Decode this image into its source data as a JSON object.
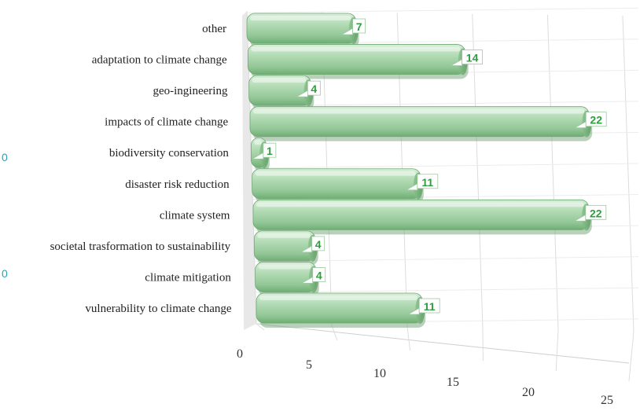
{
  "chart_data": {
    "type": "bar",
    "orientation": "horizontal",
    "style": "3d",
    "categories": [
      "other",
      "adaptation to climate change",
      "geo-ingineering",
      "impacts of climate change",
      "biodiversity conservation",
      "disaster risk reduction",
      "climate system",
      "societal trasformation to sustainability",
      "climate mitigation",
      "vulnerability to climate change"
    ],
    "values": [
      7,
      14,
      4,
      22,
      1,
      11,
      22,
      4,
      4,
      11
    ],
    "data_labels": [
      "7",
      "14",
      "4",
      "22",
      "1",
      "11",
      "22",
      "4",
      "4",
      "11"
    ],
    "x_ticks": [
      "0",
      "5",
      "10",
      "15",
      "20",
      "25"
    ],
    "xlim": [
      0,
      25
    ],
    "grid": true,
    "legend": "none",
    "bar_color": "#a9d5ab",
    "label_color": "#2e9e3e",
    "clipped_fragments": [
      "0",
      "0"
    ]
  }
}
